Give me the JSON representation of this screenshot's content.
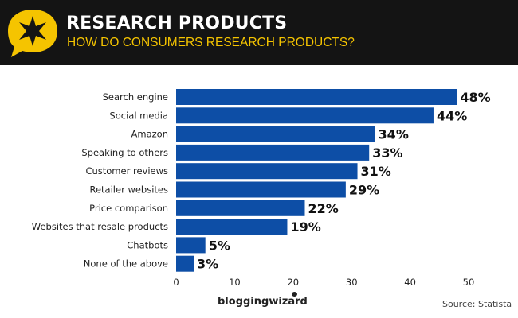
{
  "header": {
    "title": "RESEARCH PRODUCTS",
    "subtitle": "HOW DO CONSUMERS RESEARCH PRODUCTS?",
    "logo_icon": "star-speech-bubble-icon",
    "accent_color": "#f5c400"
  },
  "chart_data": {
    "type": "bar",
    "orientation": "horizontal",
    "categories": [
      "Search engine",
      "Social media",
      "Amazon",
      "Speaking to others",
      "Customer reviews",
      "Retailer websites",
      "Price comparison",
      "Websites that resale products",
      "Chatbots",
      "None of the above"
    ],
    "values": [
      48,
      44,
      34,
      33,
      31,
      29,
      22,
      19,
      5,
      3
    ],
    "data_labels": [
      "48%",
      "44%",
      "34%",
      "33%",
      "31%",
      "29%",
      "22%",
      "19%",
      "5%",
      "3%"
    ],
    "xlim": [
      0,
      50
    ],
    "xticks": [
      "0",
      "10",
      "20",
      "30",
      "40",
      "50"
    ],
    "grid": false,
    "bar_color": "#0d4ea6"
  },
  "footer": {
    "brand": "bloggingwizard",
    "source": "Source:  Statista"
  }
}
